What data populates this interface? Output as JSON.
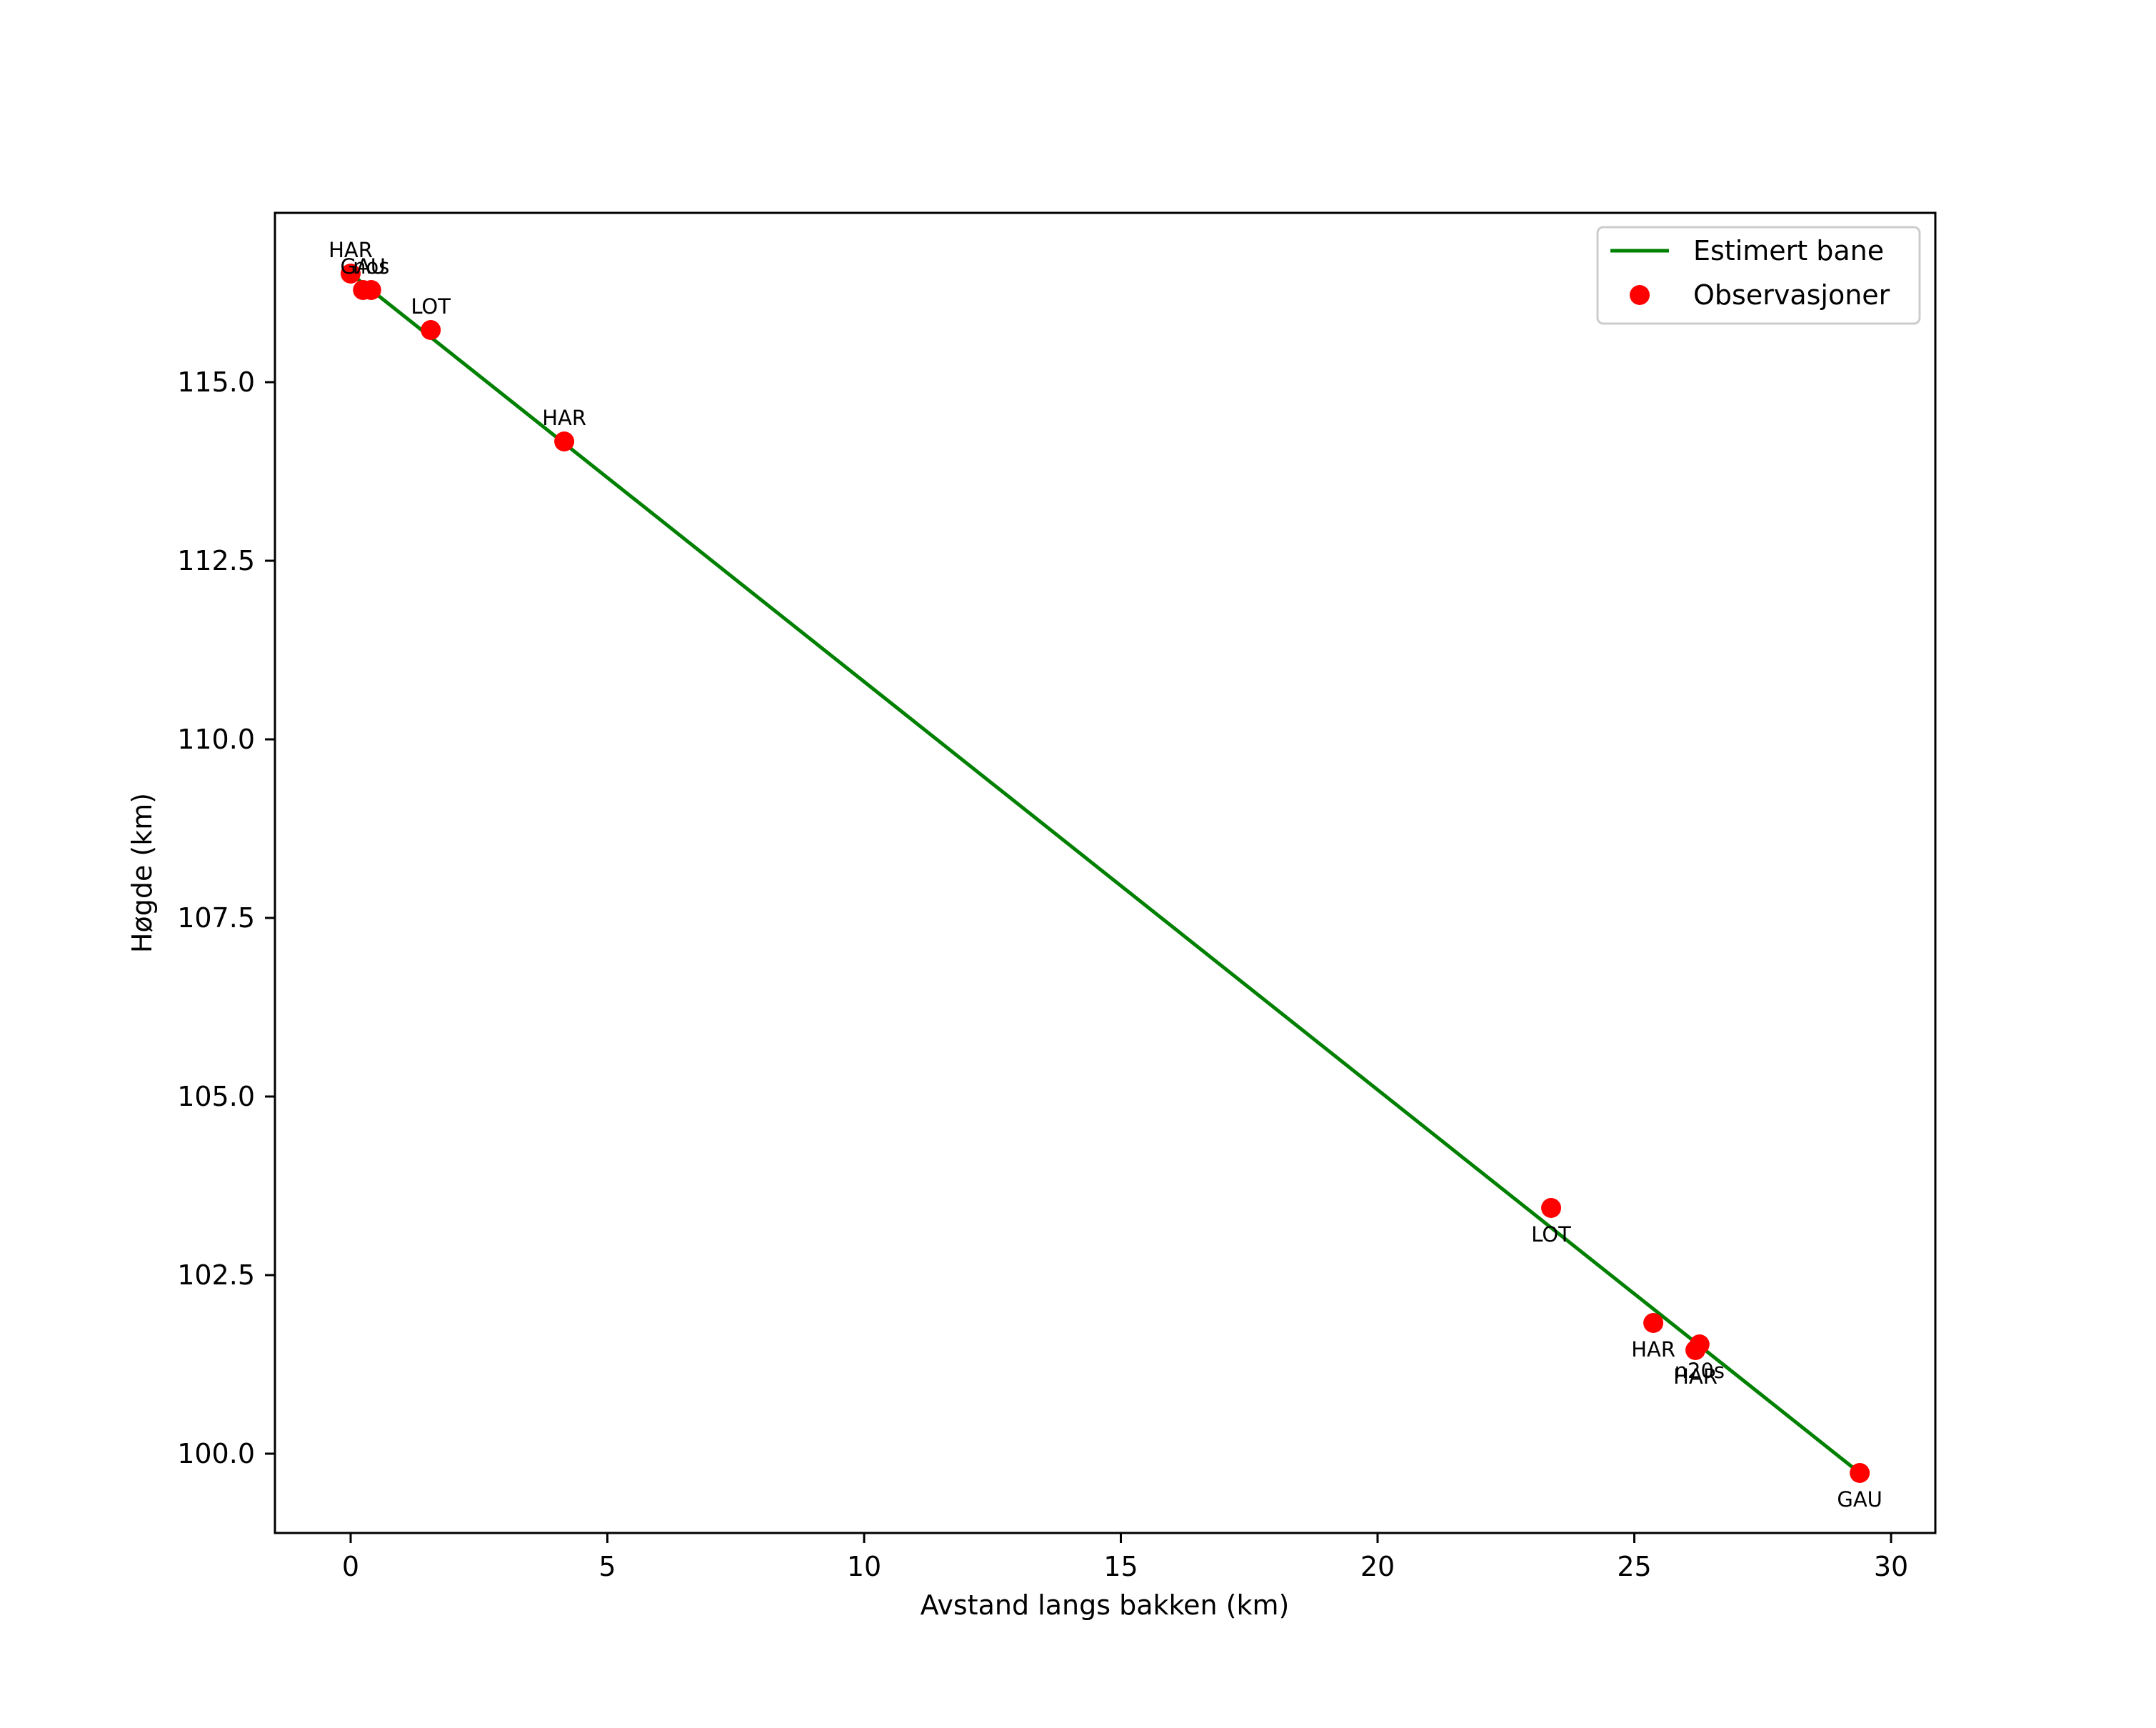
{
  "chart_data": {
    "type": "line",
    "title": "",
    "xlabel": "Avstand langs bakken (km)",
    "ylabel": "Høgde (km)",
    "xlim": [
      -1.47,
      30.85
    ],
    "ylim": [
      99.1,
      117.4
    ],
    "xticks": [
      0,
      5,
      10,
      15,
      20,
      25,
      30
    ],
    "xtick_labels": [
      "0",
      "5",
      "10",
      "15",
      "20",
      "25",
      "30"
    ],
    "yticks": [
      100.0,
      102.5,
      105.0,
      107.5,
      110.0,
      112.5,
      115.0
    ],
    "ytick_labels": [
      "100.0",
      "102.5",
      "105.0",
      "107.5",
      "110.0",
      "112.5",
      "115.0"
    ],
    "grid": false,
    "legend_position": "upper right",
    "series": [
      {
        "name": "Estimert bane",
        "kind": "line",
        "color": "#008000",
        "x": [
          0.0,
          29.39
        ],
        "y": [
          116.52,
          99.73
        ]
      },
      {
        "name": "Observasjoner",
        "kind": "scatter",
        "color": "#ff0000",
        "points": [
          {
            "x": 0.0,
            "y": 116.52,
            "label": "HAR",
            "label_pos": "above"
          },
          {
            "x": 0.24,
            "y": 116.29,
            "label": "GAU",
            "label_pos": "above"
          },
          {
            "x": 0.4,
            "y": 116.29,
            "label": "nos",
            "label_pos": "above"
          },
          {
            "x": 1.56,
            "y": 115.73,
            "label": "LOT",
            "label_pos": "above"
          },
          {
            "x": 4.16,
            "y": 114.17,
            "label": "HAR",
            "label_pos": "above"
          },
          {
            "x": 23.38,
            "y": 103.44,
            "label": "LOT",
            "label_pos": "below"
          },
          {
            "x": 25.37,
            "y": 101.83,
            "label": "HAR",
            "label_pos": "below"
          },
          {
            "x": 26.19,
            "y": 101.45,
            "label": "HAR",
            "label_pos": "below"
          },
          {
            "x": 26.27,
            "y": 101.53,
            "label": "n20s",
            "label_pos": "below"
          },
          {
            "x": 29.39,
            "y": 99.73,
            "label": "GAU",
            "label_pos": "below"
          }
        ]
      }
    ]
  },
  "legend": {
    "items": [
      {
        "label": "Estimert bane",
        "color": "#008000",
        "marker": "line"
      },
      {
        "label": "Observasjoner",
        "color": "#ff0000",
        "marker": "dot"
      }
    ]
  },
  "axes": {
    "xlabel": "Avstand langs bakken (km)",
    "ylabel": "Høgde (km)"
  }
}
